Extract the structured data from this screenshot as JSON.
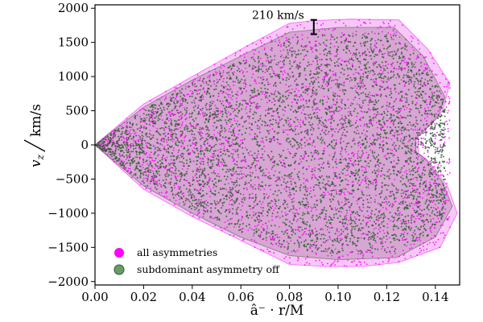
{
  "chart_data": {
    "type": "scatter",
    "xlabel": "â⁻ · r/M",
    "ylabel_main": "v",
    "ylabel_sub": "z",
    "ylabel_unit": "km/s",
    "xlim": [
      0.0,
      0.15
    ],
    "ylim": [
      -2050,
      2050
    ],
    "xticks": [
      0.0,
      0.02,
      0.04,
      0.06,
      0.08,
      0.1,
      0.12,
      0.14
    ],
    "xtick_labels": [
      "0.00",
      "0.02",
      "0.04",
      "0.06",
      "0.08",
      "0.10",
      "0.12",
      "0.14"
    ],
    "yticks": [
      -2000,
      -1500,
      -1000,
      -500,
      0,
      500,
      1000,
      1500,
      2000
    ],
    "ytick_labels": [
      "−2000",
      "−1500",
      "−1000",
      "−500",
      "0",
      "500",
      "1000",
      "1500",
      "2000"
    ],
    "grid": false,
    "legend_position": "bottom-left",
    "annotation": {
      "text": "210 km/s",
      "x": 0.09,
      "y": 1725,
      "half_height": 105
    },
    "series": [
      {
        "name": "all asymmetries",
        "color": "#ff00ff",
        "hull_color": "#ee82ee",
        "hull_upper": [
          [
            0.0,
            0
          ],
          [
            0.02,
            600
          ],
          [
            0.04,
            1000
          ],
          [
            0.06,
            1400
          ],
          [
            0.08,
            1780
          ],
          [
            0.09,
            1820
          ],
          [
            0.105,
            1840
          ],
          [
            0.125,
            1830
          ],
          [
            0.137,
            1400
          ],
          [
            0.146,
            900
          ],
          [
            0.143,
            500
          ],
          [
            0.136,
            220
          ],
          [
            0.133,
            120
          ]
        ],
        "hull_lower": [
          [
            0.0,
            0
          ],
          [
            0.02,
            -650
          ],
          [
            0.04,
            -1050
          ],
          [
            0.06,
            -1400
          ],
          [
            0.08,
            -1750
          ],
          [
            0.095,
            -1780
          ],
          [
            0.11,
            -1780
          ],
          [
            0.125,
            -1720
          ],
          [
            0.142,
            -1500
          ],
          [
            0.149,
            -1000
          ],
          [
            0.145,
            -600
          ],
          [
            0.137,
            -230
          ],
          [
            0.133,
            -120
          ]
        ]
      },
      {
        "name": "subdominant asymmetry off",
        "color": "#2f5a2f",
        "hull_color": "#9a6a8f",
        "hull_upper": [
          [
            0.0,
            0
          ],
          [
            0.02,
            550
          ],
          [
            0.04,
            950
          ],
          [
            0.06,
            1300
          ],
          [
            0.08,
            1650
          ],
          [
            0.1,
            1720
          ],
          [
            0.123,
            1720
          ],
          [
            0.135,
            1300
          ],
          [
            0.144,
            700
          ],
          [
            0.141,
            400
          ],
          [
            0.135,
            200
          ],
          [
            0.132,
            100
          ]
        ],
        "hull_lower": [
          [
            0.0,
            0
          ],
          [
            0.02,
            -600
          ],
          [
            0.04,
            -1000
          ],
          [
            0.06,
            -1350
          ],
          [
            0.08,
            -1620
          ],
          [
            0.1,
            -1680
          ],
          [
            0.124,
            -1650
          ],
          [
            0.14,
            -1350
          ],
          [
            0.147,
            -900
          ],
          [
            0.143,
            -550
          ],
          [
            0.136,
            -210
          ],
          [
            0.132,
            -100
          ]
        ]
      }
    ]
  }
}
